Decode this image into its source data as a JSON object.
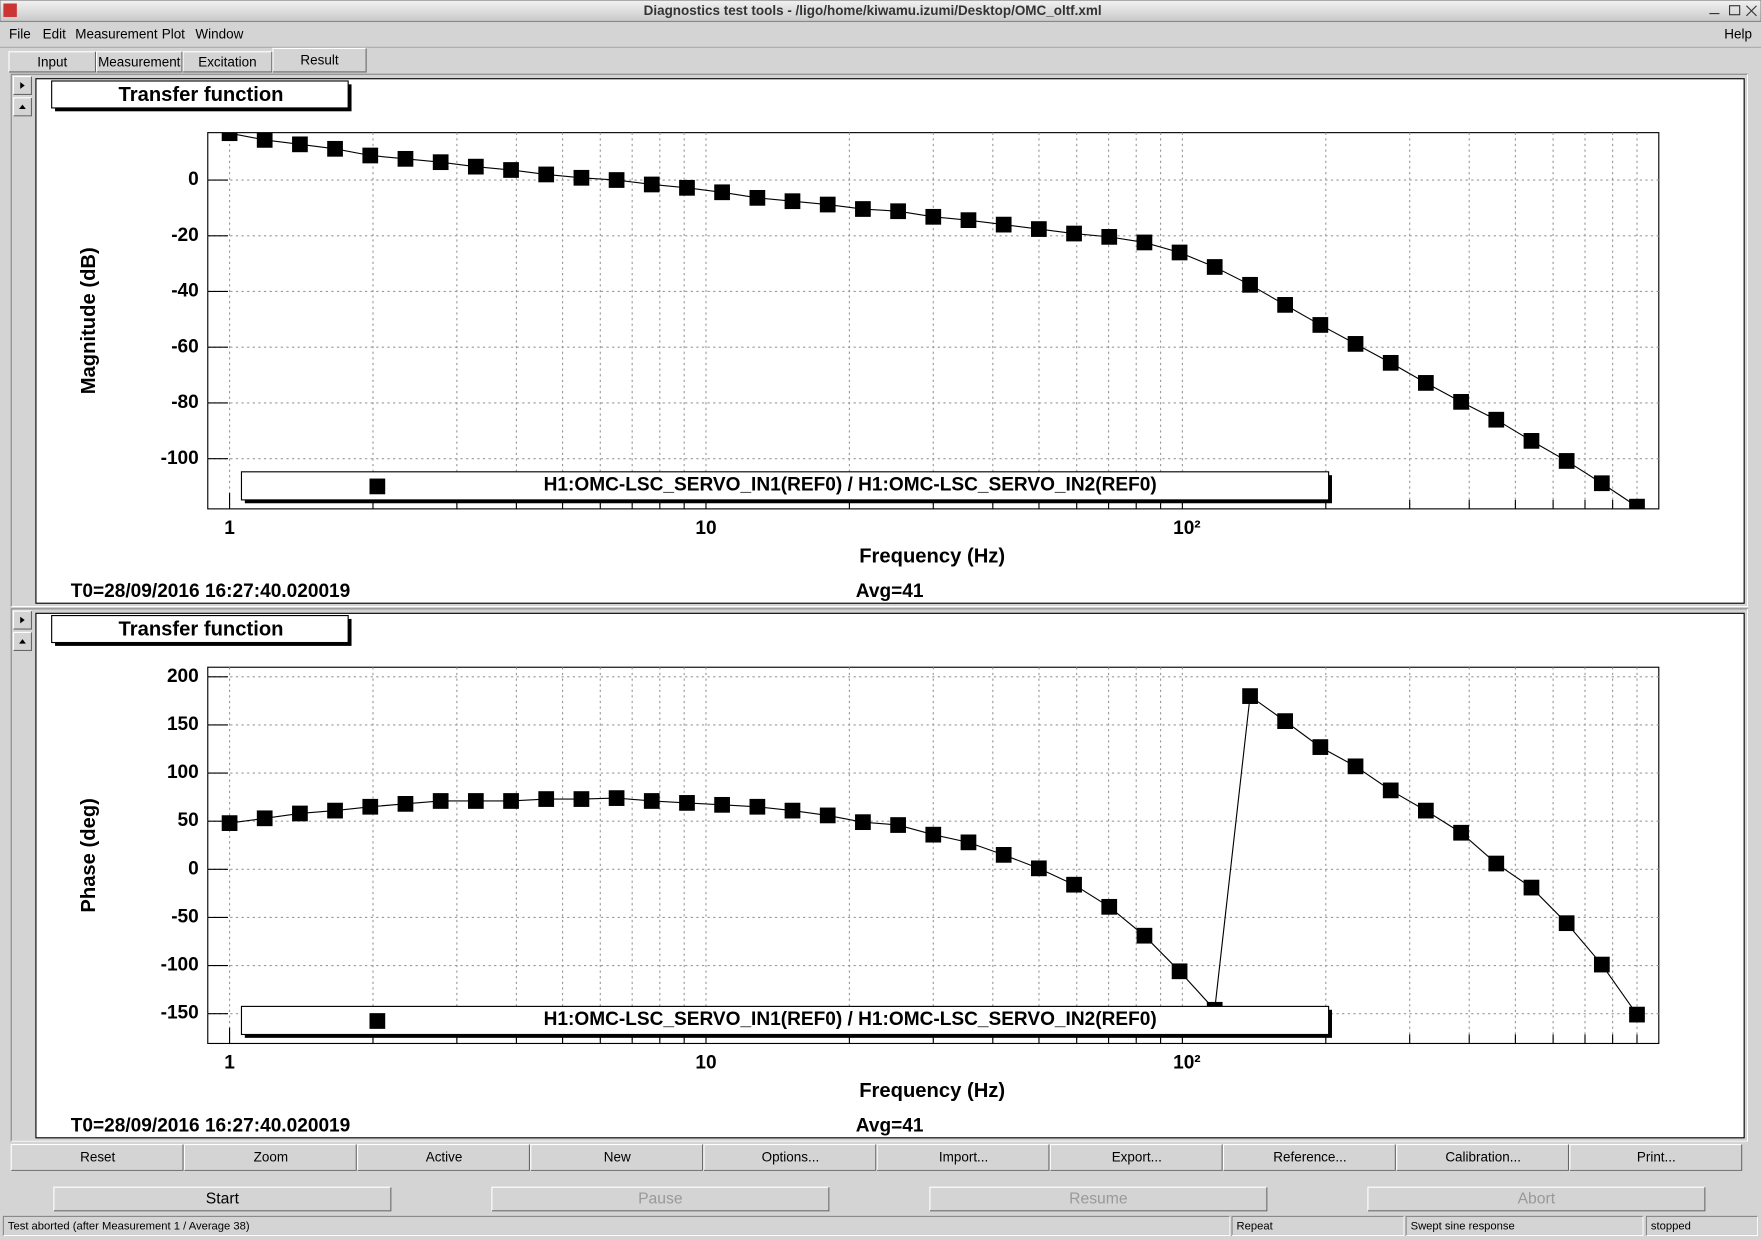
{
  "window": {
    "title": "Diagnostics test tools - /ligo/home/kiwamu.izumi/Desktop/OMC_oltf.xml"
  },
  "menu": [
    "File",
    "Edit",
    "Measurement",
    "Plot",
    "Window"
  ],
  "help_menu": "Help",
  "tabs": [
    "Input",
    "Measurement",
    "Excitation",
    "Result"
  ],
  "chart_data": [
    {
      "type": "line",
      "title": "Transfer function",
      "xlabel": "Frequency (Hz)",
      "ylabel": "Magnitude (dB)",
      "log_x": true,
      "grid": true,
      "x": [
        1,
        1.185,
        1.405,
        1.665,
        1.974,
        2.34,
        2.774,
        3.288,
        3.898,
        4.62,
        5.477,
        6.492,
        7.695,
        9.123,
        10.81,
        12.82,
        15.19,
        18.01,
        21.35,
        25.31,
        30,
        35.56,
        42.16,
        49.97,
        59.24,
        70.22,
        83.24,
        98.65,
        116.9,
        138.7,
        164.3,
        194.8,
        230.9,
        273.7,
        324.4,
        384.6,
        455.9,
        540.4,
        640.6,
        759.3,
        900
      ],
      "series": [
        {
          "name": "H1:OMC-LSC_SERVO_IN1(REF0) / H1:OMC-LSC_SERVO_IN2(REF0)",
          "color": "#000000",
          "values": [
            16.8,
            14.4,
            12.8,
            11.2,
            8.8,
            7.6,
            6.4,
            4.8,
            3.6,
            2.0,
            0.8,
            0,
            -1.6,
            -2.8,
            -4.4,
            -6.4,
            -7.6,
            -8.8,
            -10.4,
            -11.2,
            -13.2,
            -14.4,
            -16,
            -17.6,
            -19.2,
            -20.4,
            -22.4,
            -26,
            -31.2,
            -37.6,
            -44.8,
            -52,
            -58.8,
            -65.6,
            -72.8,
            -79.6,
            -86,
            -93.6,
            -100.8,
            -108.8,
            -117.2
          ]
        }
      ],
      "xlim": [
        0.9,
        1000
      ],
      "ylim": [
        -118,
        17
      ],
      "xticks": [
        1,
        10,
        {
          "value": 100,
          "label": "10²"
        }
      ],
      "xminorticks": [
        2,
        3,
        4,
        5,
        6,
        7,
        8,
        9,
        20,
        30,
        40,
        50,
        60,
        70,
        80,
        90,
        200,
        300,
        400,
        500,
        600,
        700,
        800,
        900
      ],
      "yticks": [
        0,
        -20,
        -40,
        -60,
        -80,
        -100
      ],
      "t0": "T0=28/09/2016 16:27:40.020019",
      "avg": "Avg=41"
    },
    {
      "type": "line",
      "title": "Transfer function",
      "xlabel": "Frequency (Hz)",
      "ylabel": "Phase (deg)",
      "log_x": true,
      "grid": true,
      "x": [
        1,
        1.185,
        1.405,
        1.665,
        1.974,
        2.34,
        2.774,
        3.288,
        3.898,
        4.62,
        5.477,
        6.492,
        7.695,
        9.123,
        10.81,
        12.82,
        15.19,
        18.01,
        21.35,
        25.31,
        30,
        35.56,
        42.16,
        49.97,
        59.24,
        70.22,
        83.24,
        98.65,
        116.9,
        138.7,
        164.3,
        194.8,
        230.9,
        273.7,
        324.4,
        384.6,
        455.9,
        540.4,
        640.6,
        759.3,
        900
      ],
      "series": [
        {
          "name": "H1:OMC-LSC_SERVO_IN1(REF0) / H1:OMC-LSC_SERVO_IN2(REF0)",
          "color": "#000000",
          "values": [
            48,
            53,
            58,
            61,
            65,
            68,
            71,
            71,
            71,
            73,
            73,
            74,
            71,
            69,
            67,
            65,
            61,
            56,
            49,
            46,
            36,
            28,
            15,
            1,
            -16,
            -39,
            -69,
            -106,
            -146,
            180,
            154,
            127,
            107,
            82,
            61,
            38,
            6,
            -19,
            -56,
            -99,
            -151
          ]
        }
      ],
      "xlim": [
        0.9,
        1000
      ],
      "ylim": [
        -181,
        210
      ],
      "xticks": [
        1,
        10,
        {
          "value": 100,
          "label": "10²"
        }
      ],
      "xminorticks": [
        2,
        3,
        4,
        5,
        6,
        7,
        8,
        9,
        20,
        30,
        40,
        50,
        60,
        70,
        80,
        90,
        200,
        300,
        400,
        500,
        600,
        700,
        800,
        900
      ],
      "yticks": [
        200,
        150,
        100,
        50,
        0,
        -50,
        -100,
        -150
      ],
      "t0": "T0=28/09/2016 16:27:40.020019",
      "avg": "Avg=41"
    }
  ],
  "plot_buttons": [
    "Reset",
    "Zoom",
    "Active",
    "New",
    "Options...",
    "Import...",
    "Export...",
    "Reference...",
    "Calibration...",
    "Print..."
  ],
  "control_buttons": [
    "Start",
    "Pause",
    "Resume",
    "Abort"
  ],
  "status": [
    "Test aborted (after Measurement 1 / Average 38)",
    "Repeat",
    "Swept sine response",
    "stopped"
  ]
}
